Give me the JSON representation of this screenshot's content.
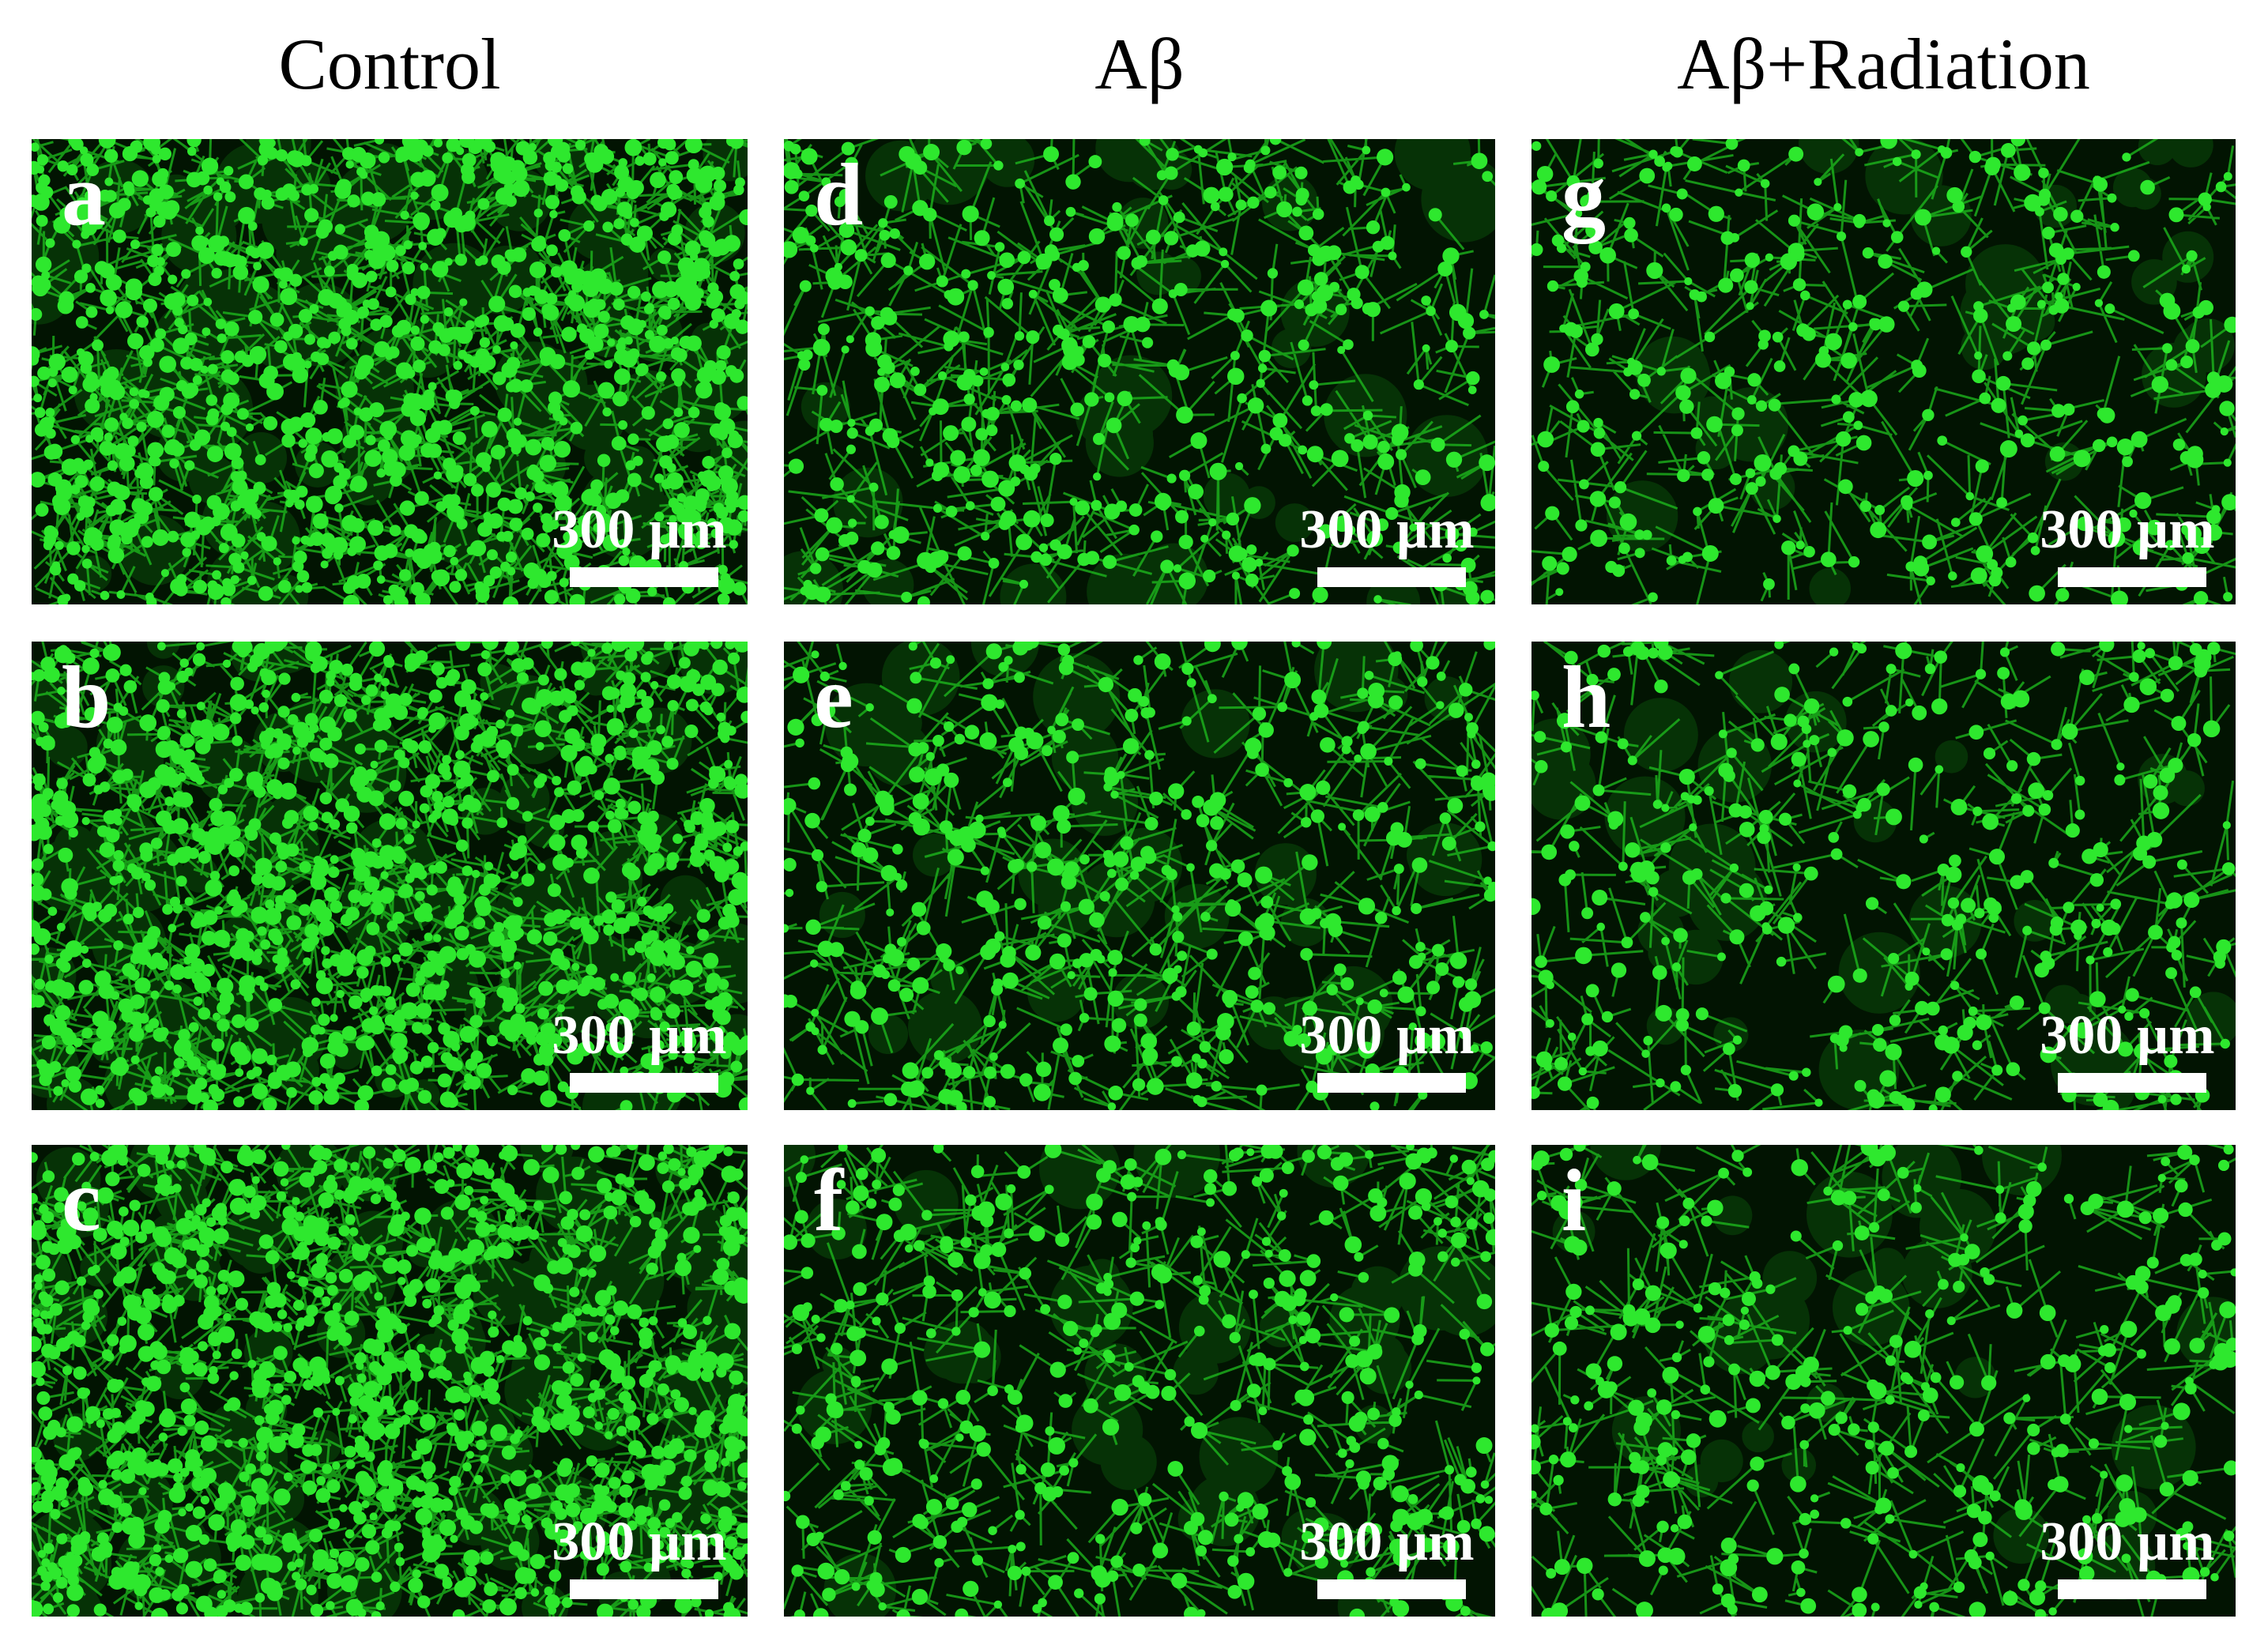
{
  "column_titles": [
    "Control",
    "Aβ",
    "Aβ+Radiation"
  ],
  "panels": [
    {
      "label": "a",
      "scale_bar": "300 µm"
    },
    {
      "label": "b",
      "scale_bar": "300 µm"
    },
    {
      "label": "c",
      "scale_bar": "300 µm"
    },
    {
      "label": "d",
      "scale_bar": "300 µm"
    },
    {
      "label": "e",
      "scale_bar": "300 µm"
    },
    {
      "label": "f",
      "scale_bar": "300 µm"
    },
    {
      "label": "g",
      "scale_bar": "300 µm"
    },
    {
      "label": "h",
      "scale_bar": "300 µm"
    },
    {
      "label": "i",
      "scale_bar": "300 µm"
    }
  ]
}
